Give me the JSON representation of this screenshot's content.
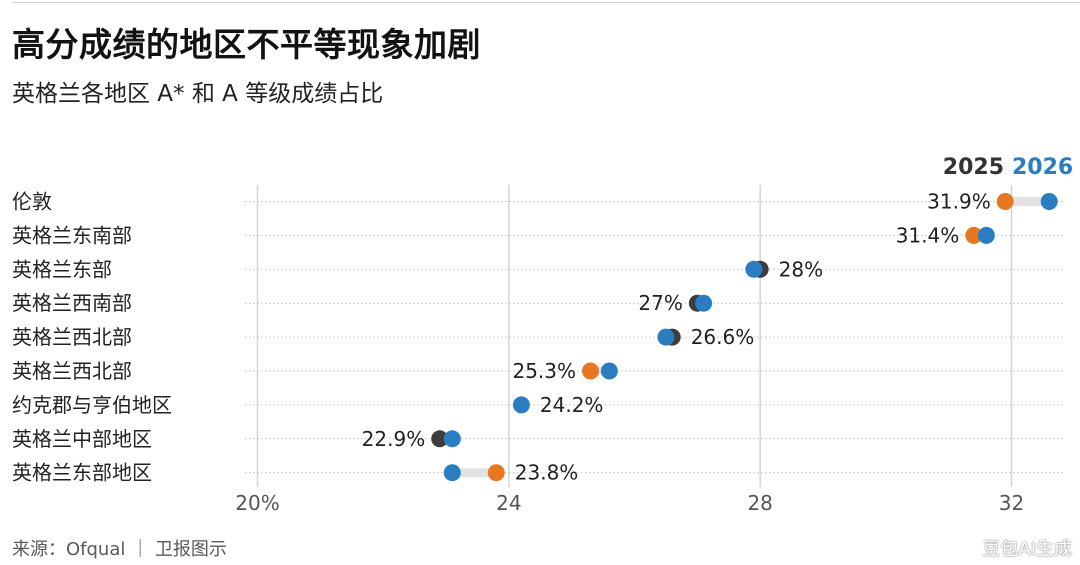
{
  "title": "高分成绩的地区不平等现象加剧",
  "subtitle": "英格兰各地区 A* 和 A 等级成绩占比",
  "source": "来源：Ofqual ｜ 卫报图示",
  "watermark": "豆包AI生成",
  "colors": {
    "y2025": "#e87722",
    "y2026": "#2a7dc0",
    "nochange": "#3d3d3d",
    "grid": "#d4d4d4",
    "connector": "#e2e2e2",
    "label": "#222222",
    "legend2025": "#333333",
    "legend2026": "#2a7dc0"
  },
  "chart_data": {
    "type": "dumbbell",
    "legend": [
      "2025",
      "2026"
    ],
    "x_ticks": [
      "20%",
      "24",
      "28",
      "32"
    ],
    "x_tick_values": [
      20,
      24,
      28,
      32
    ],
    "xlim": [
      20,
      33
    ],
    "grid": true,
    "rows": [
      {
        "region": "伦敦",
        "v2025": 31.9,
        "v2026": 32.6,
        "label": "31.9%",
        "label_side": "left",
        "style": "both"
      },
      {
        "region": "英格兰东南部",
        "v2025": 31.4,
        "v2026": 31.6,
        "label": "31.4%",
        "label_side": "left",
        "style": "both"
      },
      {
        "region": "英格兰东部",
        "v2025": 28.0,
        "v2026": 27.9,
        "label": "28%",
        "label_side": "right",
        "style": "dark"
      },
      {
        "region": "英格兰西南部",
        "v2025": 27.0,
        "v2026": 27.1,
        "label": "27%",
        "label_side": "left",
        "style": "dark"
      },
      {
        "region": "英格兰西北部",
        "v2025": 26.6,
        "v2026": 26.5,
        "label": "26.6%",
        "label_side": "right",
        "style": "dark"
      },
      {
        "region": "英格兰西北部",
        "v2025": 25.3,
        "v2026": 25.6,
        "label": "25.3%",
        "label_side": "left",
        "style": "both"
      },
      {
        "region": "约克郡与亨伯地区",
        "v2025": 24.2,
        "v2026": 24.2,
        "label": "24.2%",
        "label_side": "right",
        "style": "single"
      },
      {
        "region": "英格兰中部地区",
        "v2025": 22.9,
        "v2026": 23.1,
        "label": "22.9%",
        "label_side": "left",
        "style": "dark"
      },
      {
        "region": "英格兰东部地区",
        "v2025": 23.8,
        "v2026": 23.1,
        "label": "23.8%",
        "label_side": "right",
        "style": "both"
      }
    ]
  }
}
